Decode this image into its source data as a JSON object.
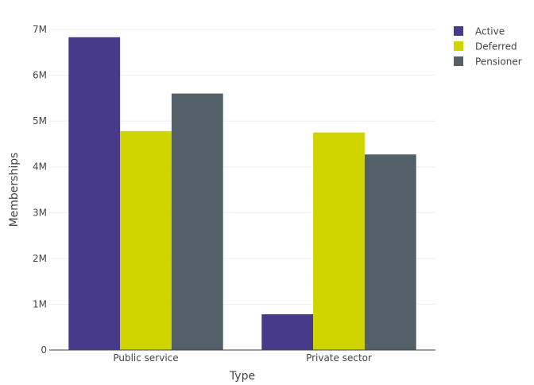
{
  "chart_data": {
    "type": "bar",
    "title": "",
    "xlabel": "Type",
    "ylabel": "Memberships",
    "categories": [
      "Public service",
      "Private sector"
    ],
    "series": [
      {
        "name": "Active",
        "color": "#483a8b",
        "values": [
          6830000,
          780000
        ]
      },
      {
        "name": "Deferred",
        "color": "#cfd400",
        "values": [
          4780000,
          4750000
        ]
      },
      {
        "name": "Pensioner",
        "color": "#536068",
        "values": [
          5600000,
          4270000
        ]
      }
    ],
    "ylim": [
      0,
      7000000
    ],
    "yticks": [
      {
        "value": 0,
        "label": "0"
      },
      {
        "value": 1000000,
        "label": "1M"
      },
      {
        "value": 2000000,
        "label": "2M"
      },
      {
        "value": 3000000,
        "label": "3M"
      },
      {
        "value": 4000000,
        "label": "4M"
      },
      {
        "value": 5000000,
        "label": "5M"
      },
      {
        "value": 6000000,
        "label": "6M"
      },
      {
        "value": 7000000,
        "label": "7M"
      }
    ],
    "grid": true,
    "legend_position": "top-right"
  }
}
